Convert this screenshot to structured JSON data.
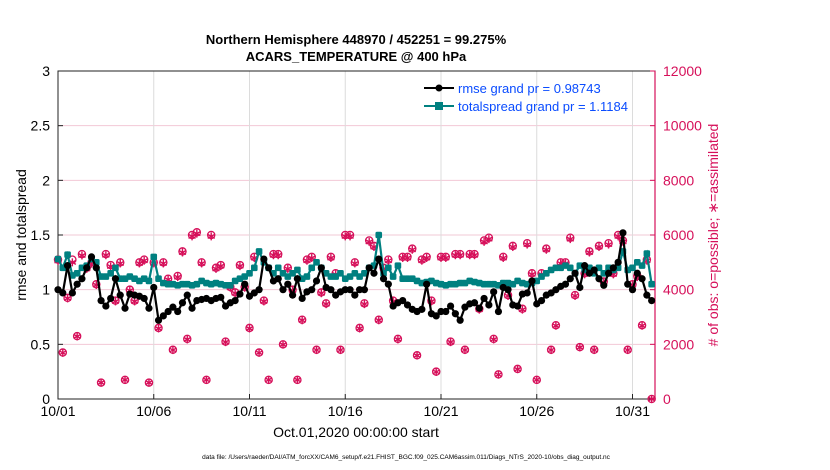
{
  "chart_data": {
    "type": "line",
    "title": "Northern Hemisphere 448970 / 452251 = 99.275%",
    "subtitle": "ACARS_TEMPERATURE @ 400 hPa",
    "xlabel": "Oct.01,2020 00:00:00 start",
    "ylabel": "rmse and totalspread",
    "y2label": "# of obs: o=possible; ∗=assimilated",
    "footer": "data file: /Users/raeder/DAI/ATM_forcXX/CAM6_setup/f.e21.FHIST_BGC.f09_025.CAM6assim.011/Diags_NTrS_2020-10/obs_diag_output.nc",
    "ylim": [
      0,
      3
    ],
    "y2lim": [
      0,
      12000
    ],
    "yticks": [
      "0",
      "0.5",
      "1",
      "1.5",
      "2",
      "2.5",
      "3"
    ],
    "y2ticks": [
      "0",
      "2000",
      "4000",
      "6000",
      "8000",
      "10000",
      "12000"
    ],
    "xticks": [
      "10/01",
      "10/06",
      "10/11",
      "10/16",
      "10/21",
      "10/26",
      "10/31"
    ],
    "grid": true,
    "legend_position": "top-right",
    "colors": {
      "rmse": "#000000",
      "totalspread": "#008080",
      "obs": "#d6105a",
      "legend_text": "#0a4cff"
    },
    "x": [
      "10/01 00",
      "10/01 06",
      "10/01 12",
      "10/01 18",
      "10/02 00",
      "10/02 06",
      "10/02 12",
      "10/02 18",
      "10/03 00",
      "10/03 06",
      "10/03 12",
      "10/03 18",
      "10/04 00",
      "10/04 06",
      "10/04 12",
      "10/04 18",
      "10/05 00",
      "10/05 06",
      "10/05 12",
      "10/05 18",
      "10/06 00",
      "10/06 06",
      "10/06 12",
      "10/06 18",
      "10/07 00",
      "10/07 06",
      "10/07 12",
      "10/07 18",
      "10/08 00",
      "10/08 06",
      "10/08 12",
      "10/08 18",
      "10/09 00",
      "10/09 06",
      "10/09 12",
      "10/09 18",
      "10/10 00",
      "10/10 06",
      "10/10 12",
      "10/10 18",
      "10/11 00",
      "10/11 06",
      "10/11 12",
      "10/11 18",
      "10/12 00",
      "10/12 06",
      "10/12 12",
      "10/12 18",
      "10/13 00",
      "10/13 06",
      "10/13 12",
      "10/13 18",
      "10/14 00",
      "10/14 06",
      "10/14 12",
      "10/14 18",
      "10/15 00",
      "10/15 06",
      "10/15 12",
      "10/15 18",
      "10/16 00",
      "10/16 06",
      "10/16 12",
      "10/16 18",
      "10/17 00",
      "10/17 06",
      "10/17 12",
      "10/17 18",
      "10/18 00",
      "10/18 06",
      "10/18 12",
      "10/18 18",
      "10/19 00",
      "10/19 06",
      "10/19 12",
      "10/19 18",
      "10/20 00",
      "10/20 06",
      "10/20 12",
      "10/20 18",
      "10/21 00",
      "10/21 06",
      "10/21 12",
      "10/21 18",
      "10/22 00",
      "10/22 06",
      "10/22 12",
      "10/22 18",
      "10/23 00",
      "10/23 06",
      "10/23 12",
      "10/23 18",
      "10/24 00",
      "10/24 06",
      "10/24 12",
      "10/24 18",
      "10/25 00",
      "10/25 06",
      "10/25 12",
      "10/25 18",
      "10/26 00",
      "10/26 06",
      "10/26 12",
      "10/26 18",
      "10/27 00",
      "10/27 06",
      "10/27 12",
      "10/27 18",
      "10/28 00",
      "10/28 06",
      "10/28 12",
      "10/28 18",
      "10/29 00",
      "10/29 06",
      "10/29 12",
      "10/29 18",
      "10/30 00",
      "10/30 06",
      "10/30 12",
      "10/30 18",
      "10/31 00",
      "10/31 06",
      "10/31 12",
      "10/31 18",
      "11/01 00"
    ],
    "series": [
      {
        "name": "rmse grand pr = 0.98743",
        "axis": "left",
        "values": [
          1.0,
          0.97,
          1.22,
          0.97,
          1.05,
          1.1,
          1.2,
          1.3,
          1.2,
          0.9,
          0.85,
          0.92,
          1.1,
          0.95,
          0.83,
          0.96,
          0.95,
          0.94,
          0.92,
          0.83,
          1.02,
          0.72,
          0.76,
          0.8,
          0.84,
          0.8,
          0.88,
          0.95,
          0.83,
          0.9,
          0.91,
          0.92,
          0.9,
          0.92,
          0.93,
          0.85,
          0.88,
          0.9,
          0.96,
          1.05,
          0.94,
          0.97,
          1.0,
          1.28,
          1.2,
          1.08,
          1.1,
          1.0,
          1.05,
          0.95,
          1.1,
          0.92,
          0.98,
          1.0,
          1.08,
          1.2,
          1.02,
          1.0,
          0.95,
          0.98,
          1.0,
          1.0,
          0.95,
          1.0,
          1.0,
          1.2,
          1.15,
          1.28,
          1.1,
          1.05,
          0.85,
          0.88,
          0.9,
          0.86,
          0.82,
          0.8,
          0.82,
          1.05,
          0.78,
          0.76,
          0.8,
          0.8,
          0.85,
          0.78,
          0.72,
          0.84,
          0.87,
          0.88,
          0.83,
          0.92,
          0.86,
          0.98,
          0.8,
          1.02,
          1.0,
          0.86,
          0.85,
          0.96,
          0.97,
          1.08,
          0.87,
          0.9,
          0.95,
          0.97,
          1.0,
          1.03,
          1.05,
          1.1,
          1.15,
          1.02,
          1.22,
          1.15,
          1.18,
          1.1,
          1.04,
          1.15,
          1.2,
          1.25,
          1.52,
          1.05,
          1.0,
          1.15,
          1.1,
          0.95,
          0.9
        ]
      },
      {
        "name": "totalspread grand pr = 1.1184",
        "axis": "left",
        "values": [
          1.28,
          1.2,
          1.32,
          1.13,
          1.15,
          1.2,
          1.22,
          1.28,
          1.25,
          1.12,
          1.12,
          1.15,
          1.2,
          1.1,
          1.1,
          1.12,
          1.1,
          1.08,
          1.1,
          1.08,
          1.3,
          1.1,
          1.06,
          1.05,
          1.05,
          1.04,
          1.05,
          1.05,
          1.04,
          1.05,
          1.08,
          1.06,
          1.05,
          1.06,
          1.05,
          1.04,
          1.04,
          1.08,
          1.1,
          1.12,
          1.15,
          1.2,
          1.35,
          1.25,
          1.2,
          1.15,
          1.2,
          1.15,
          1.12,
          1.15,
          1.18,
          1.1,
          1.12,
          1.2,
          1.25,
          1.2,
          1.15,
          1.12,
          1.12,
          1.15,
          1.1,
          1.12,
          1.15,
          1.12,
          1.15,
          1.2,
          1.22,
          1.5,
          1.15,
          1.2,
          1.12,
          1.22,
          1.1,
          1.1,
          1.1,
          1.08,
          1.06,
          1.07,
          1.08,
          1.06,
          1.05,
          1.04,
          1.05,
          1.05,
          1.06,
          1.06,
          1.08,
          1.07,
          1.06,
          1.05,
          1.05,
          1.05,
          1.04,
          1.06,
          1.06,
          1.05,
          1.08,
          1.06,
          1.05,
          1.06,
          1.08,
          1.12,
          1.15,
          1.18,
          1.2,
          1.2,
          1.22,
          1.2,
          1.15,
          1.22,
          1.18,
          1.2,
          1.15,
          1.2,
          1.15,
          1.2,
          1.18,
          1.2,
          1.35,
          1.18,
          1.2,
          1.25,
          1.22,
          1.33,
          1.05
        ]
      },
      {
        "name": "possible",
        "axis": "right",
        "values": [
          5100,
          1700,
          3700,
          5100,
          2300,
          5300,
          4800,
          5000,
          4200,
          600,
          5300,
          4900,
          3600,
          5000,
          700,
          4000,
          3600,
          5000,
          5100,
          600,
          5000,
          2600,
          5000,
          4400,
          1800,
          4500,
          5400,
          2200,
          6000,
          6100,
          5000,
          700,
          6000,
          4800,
          4900,
          2100,
          4100,
          3900,
          4900,
          4100,
          2600,
          5200,
          1700,
          3600,
          700,
          5300,
          5300,
          2000,
          4800,
          4000,
          700,
          2900,
          5100,
          5200,
          1800,
          3900,
          3500,
          5200,
          4600,
          1800,
          6000,
          6000,
          5000,
          2600,
          3500,
          5800,
          5600,
          2900,
          4800,
          5100,
          3600,
          2200,
          5200,
          5200,
          5500,
          1600,
          5100,
          5200,
          3600,
          1000,
          5200,
          5200,
          2100,
          5300,
          5300,
          1800,
          5300,
          5300,
          3300,
          5800,
          5900,
          2200,
          900,
          5200,
          3800,
          5600,
          1100,
          3300,
          5700,
          4600,
          700,
          4600,
          5500,
          1800,
          2700,
          5000,
          5000,
          5900,
          3800,
          1900,
          4600,
          5400,
          1800,
          5600,
          4300,
          5700,
          4600,
          6000,
          5800,
          1800,
          4200,
          4500,
          2700,
          5100,
          0
        ]
      },
      {
        "name": "assimilated",
        "axis": "right",
        "values": [
          5050,
          1690,
          3680,
          5000,
          2290,
          5250,
          4760,
          4950,
          4170,
          600,
          5260,
          4850,
          3570,
          4960,
          700,
          3970,
          3570,
          4960,
          5060,
          600,
          4960,
          2580,
          4960,
          4370,
          1790,
          4460,
          5360,
          2180,
          5950,
          6050,
          4960,
          700,
          5950,
          4760,
          4860,
          2080,
          4070,
          3870,
          4860,
          4070,
          2580,
          5160,
          1690,
          3570,
          700,
          5260,
          5260,
          1990,
          4760,
          3970,
          700,
          2880,
          5060,
          5160,
          1790,
          3870,
          3470,
          5160,
          4560,
          1790,
          5950,
          5950,
          4960,
          2580,
          3470,
          5750,
          5560,
          2880,
          4760,
          5060,
          3570,
          2180,
          5160,
          5160,
          5460,
          1590,
          5060,
          5160,
          3570,
          990,
          5160,
          5160,
          2080,
          5260,
          5260,
          1790,
          5260,
          5260,
          3270,
          5750,
          5850,
          2180,
          890,
          5160,
          3770,
          5560,
          1090,
          3270,
          5650,
          4560,
          700,
          4560,
          5460,
          1790,
          2680,
          4960,
          4960,
          5850,
          3770,
          1890,
          4560,
          5360,
          1790,
          5560,
          4270,
          5650,
          4560,
          5950,
          5750,
          1790,
          4170,
          4460,
          2680,
          5060,
          0
        ]
      }
    ]
  }
}
